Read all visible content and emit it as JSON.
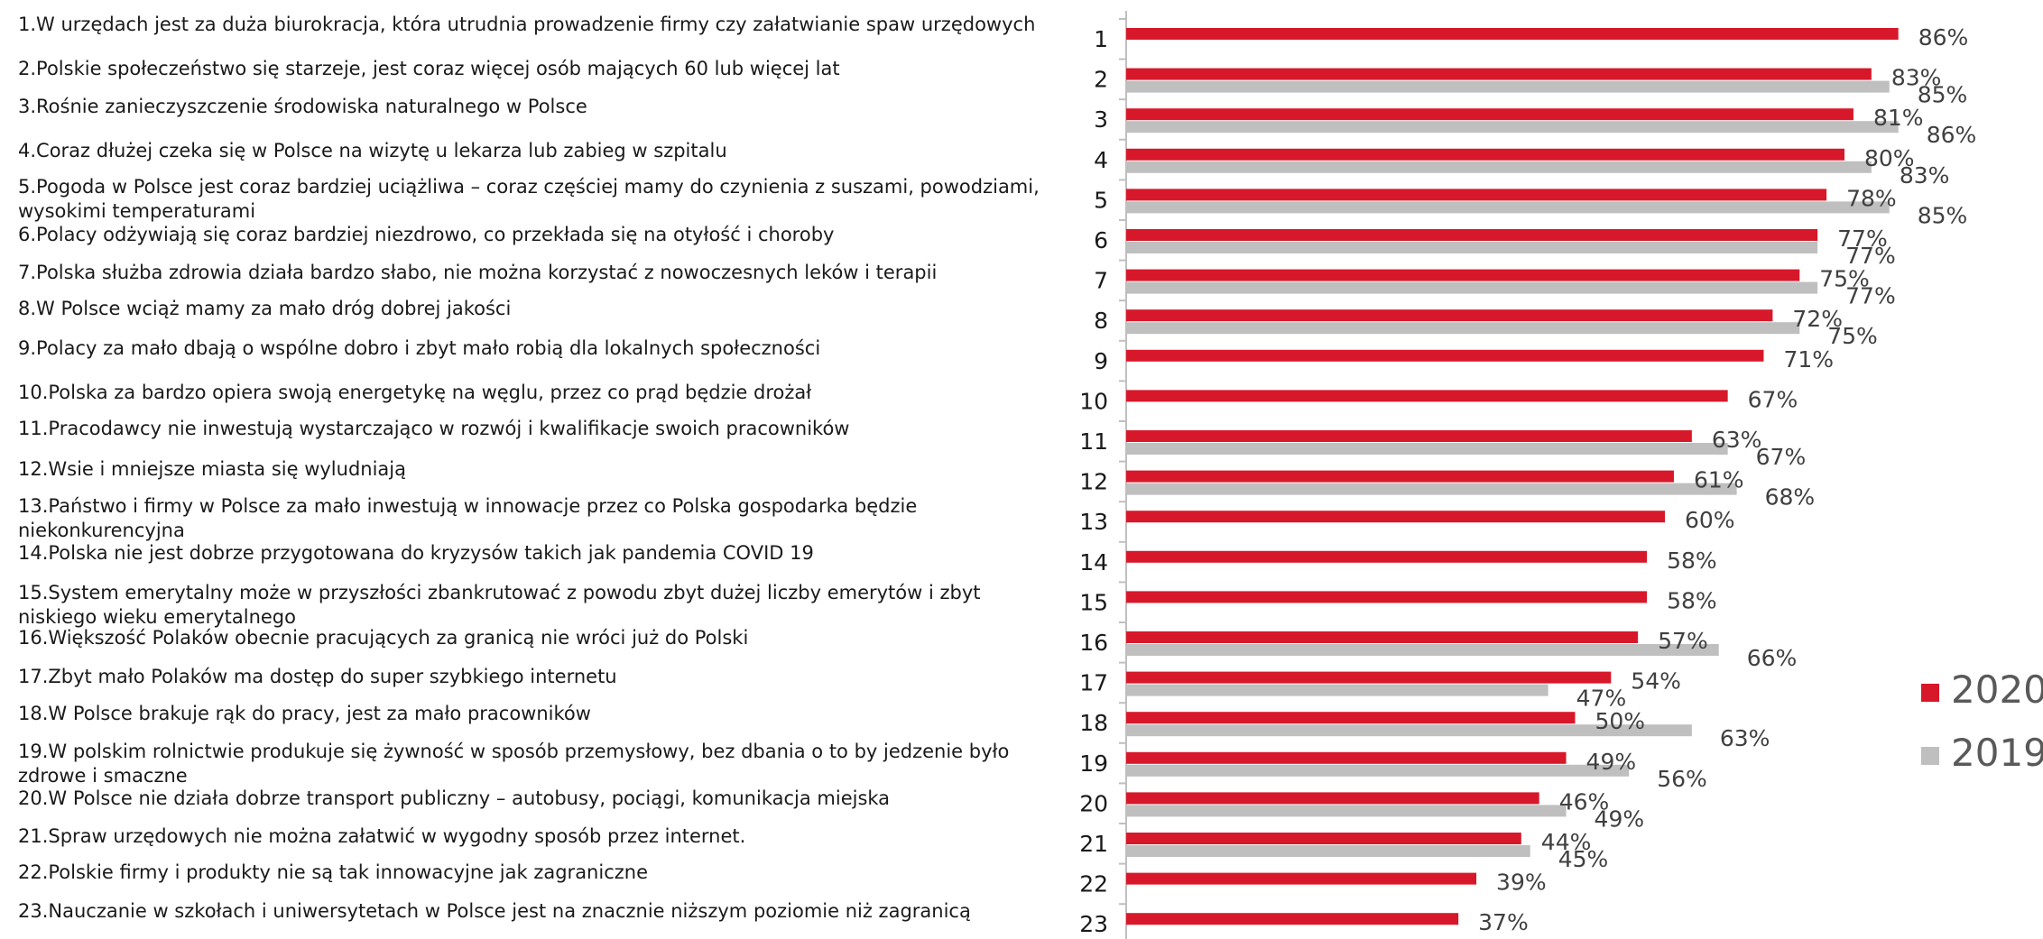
{
  "statements": [
    "1.W urzędach jest za duża biurokracja, która utrudnia prowadzenie firmy czy załatwianie spaw urzędowych",
    "2.Polskie społeczeństwo się starzeje, jest coraz więcej osób mających 60 lub więcej lat",
    "3.Rośnie zanieczyszczenie środowiska naturalnego w Polsce",
    "4.Coraz dłużej czeka się w Polsce na wizytę u lekarza lub zabieg w szpitalu",
    "5.Pogoda w Polsce jest coraz bardziej uciążliwa – coraz częściej mamy do czynienia z suszami, powodziami, wysokimi temperaturami",
    "6.Polacy odżywiają się coraz bardziej niezdrowo, co przekłada się na otyłość i choroby",
    "7.Polska służba zdrowia działa bardzo słabo, nie można korzystać z nowoczesnych leków i terapii",
    "8.W Polsce wciąż mamy za mało dróg dobrej jakości",
    "9.Polacy za mało dbają o wspólne dobro i zbyt mało robią dla lokalnych społeczności",
    "10.Polska za bardzo opiera swoją energetykę na węglu, przez co prąd będzie drożał",
    "11.Pracodawcy nie inwestują wystarczająco w rozwój i kwalifikacje swoich pracowników",
    "12.Wsie i mniejsze miasta się wyludniają",
    "13.Państwo i firmy w Polsce za mało inwestują w innowacje przez co Polska gospodarka będzie niekonkurencyjna",
    "14.Polska nie jest dobrze przygotowana do kryzysów takich jak pandemia COVID 19",
    "15.System emerytalny może w przyszłości zbankrutować z powodu zbyt dużej liczby emerytów i zbyt niskiego wieku emerytalnego",
    "16.Większość Polaków obecnie pracujących za granicą nie wróci już do Polski",
    "17.Zbyt mało Polaków ma dostęp do super szybkiego internetu",
    "18.W Polsce brakuje rąk do pracy, jest za mało pracowników",
    "19.W polskim rolnictwie produkuje się żywność w sposób przemysłowy, bez dbania o to by jedzenie było zdrowe i smaczne",
    "20.W Polsce nie działa dobrze transport publiczny – autobusy, pociągi, komunikacja miejska",
    "21.Spraw urzędowych nie można załatwić w wygodny sposób przez internet.",
    "22.Polskie firmy i produkty nie są tak innowacyjne jak zagraniczne",
    "23.Nauczanie w szkołach i uniwersytetach w Polsce jest na znacznie niższym poziomie niż zagranicą"
  ],
  "chart_data": {
    "type": "bar",
    "orientation": "horizontal",
    "categories": [
      "1",
      "2",
      "3",
      "4",
      "5",
      "6",
      "7",
      "8",
      "9",
      "10",
      "11",
      "12",
      "13",
      "14",
      "15",
      "16",
      "17",
      "18",
      "19",
      "20",
      "21",
      "22",
      "23"
    ],
    "series": [
      {
        "name": "2020",
        "color": "#d7182a",
        "values": [
          86,
          83,
          81,
          80,
          78,
          77,
          75,
          72,
          71,
          67,
          63,
          61,
          60,
          58,
          58,
          57,
          54,
          50,
          49,
          46,
          44,
          39,
          37
        ]
      },
      {
        "name": "2019",
        "color": "#bfbfbf",
        "values": [
          null,
          85,
          86,
          83,
          85,
          77,
          77,
          75,
          null,
          null,
          67,
          68,
          null,
          null,
          null,
          66,
          47,
          63,
          56,
          49,
          45,
          null,
          null
        ]
      }
    ],
    "value_suffix": "%",
    "xlim": [
      0,
      100
    ],
    "legend": "right",
    "grid": false
  }
}
